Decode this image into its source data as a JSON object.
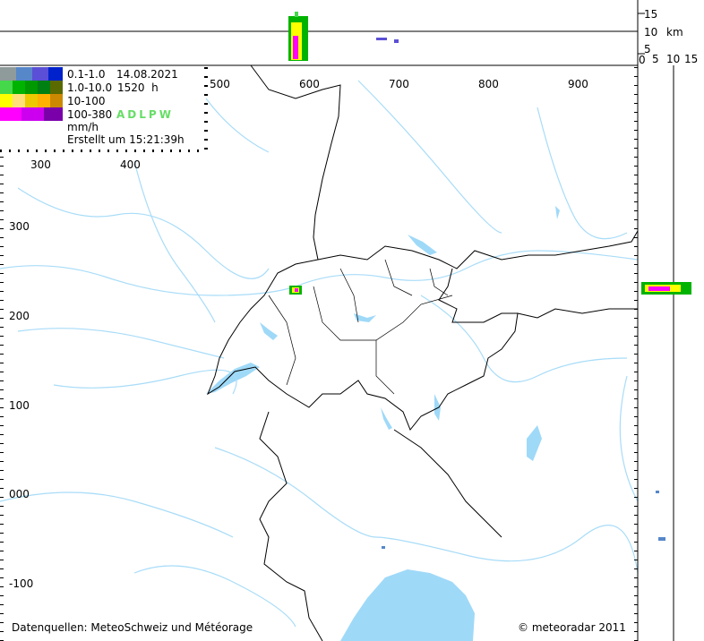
{
  "legend": {
    "rows": [
      {
        "range": "0.1-1.0",
        "info": "14.08.2021",
        "colors": [
          "#8f9a9a",
          "#5687c9",
          "#5a4fd6",
          "#0022cc"
        ]
      },
      {
        "range": "1.0-10.0",
        "info": "1520  h",
        "colors": [
          "#44d84a",
          "#00b300",
          "#009900",
          "#007f12",
          "#5a6a00"
        ]
      },
      {
        "range": "10-100",
        "info": "",
        "colors": [
          "#ffff00",
          "#ffdf7a",
          "#eec800",
          "#ffb000",
          "#cc8800"
        ]
      },
      {
        "range": "100-380",
        "info": "ADLPW",
        "colors": [
          "#ff00ff",
          "#cc00ee",
          "#bb00ee",
          "#7a00aa"
        ]
      }
    ],
    "unit": "mm/h",
    "created": "Erstellt um 15:21:39h",
    "station_color": "#66dd66"
  },
  "axes": {
    "x_ticks_top": [
      "500",
      "600",
      "700",
      "800",
      "900"
    ],
    "x_ticks_inner": [
      "300",
      "400"
    ],
    "y_ticks": [
      "300",
      "200",
      "100",
      "000",
      "-100"
    ],
    "height_ticks": [
      "15",
      "10",
      "5"
    ],
    "height_unit": "km",
    "side_ticks": [
      "0",
      "5",
      "10",
      "15"
    ]
  },
  "footer": {
    "source": "Datenquellen: MeteoSchweiz und Météorage",
    "copyright": "© meteoradar 2011"
  },
  "colors": {
    "water": "#9fd9f8",
    "river": "#a8dcf8",
    "border": "#000000"
  }
}
